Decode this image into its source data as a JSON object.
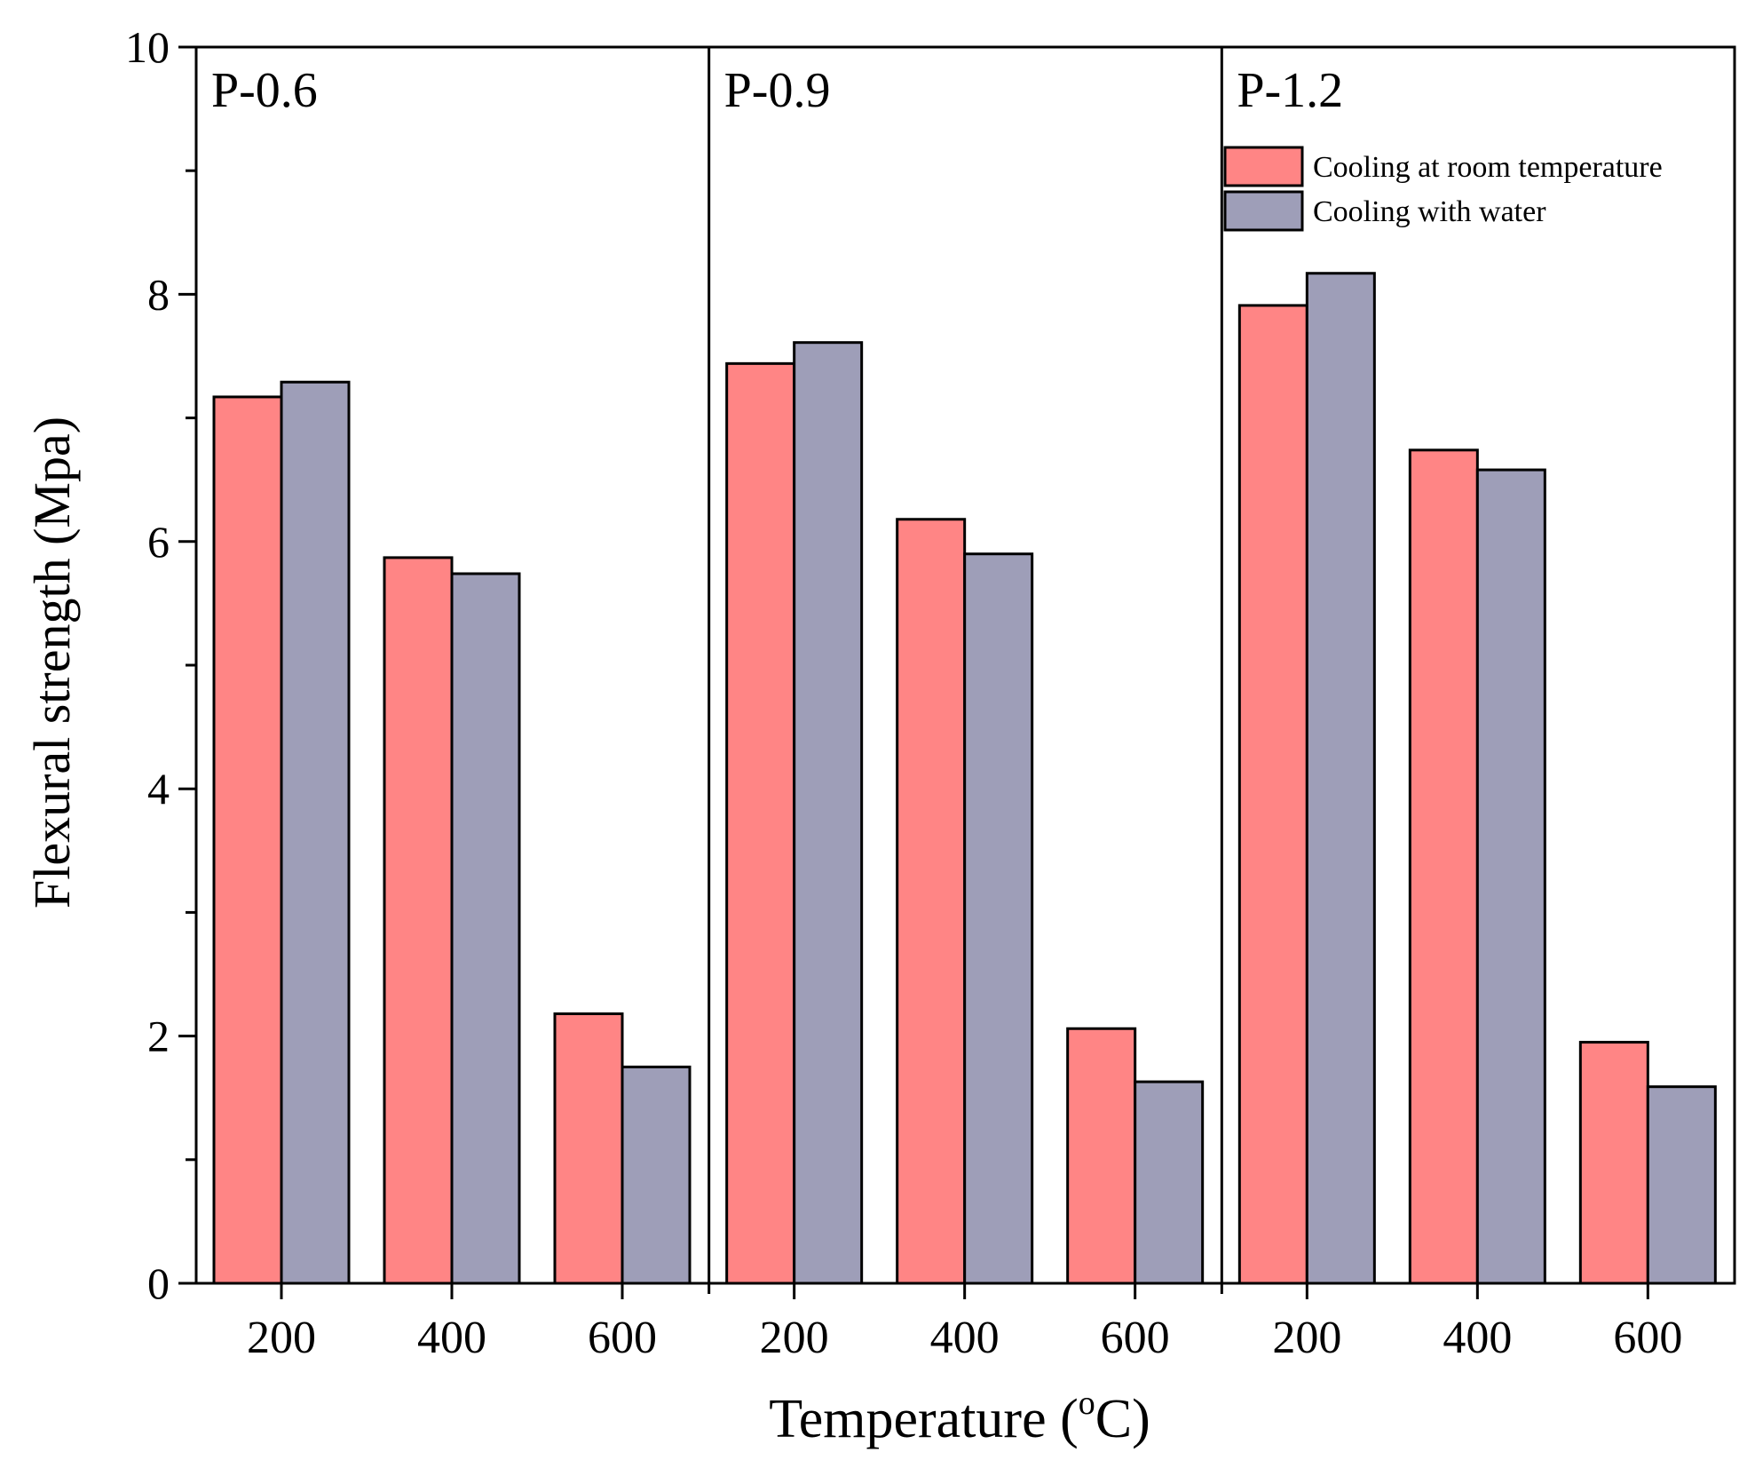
{
  "chart_data": {
    "type": "bar",
    "title": "",
    "xlabel_main": "Temperature (",
    "xlabel_sup": "o",
    "xlabel_tail": "C)",
    "ylabel": "Flexural strength (Mpa)",
    "ylim": [
      0,
      10
    ],
    "yticks": [
      0,
      2,
      4,
      6,
      8,
      10
    ],
    "yticks_minor": [
      1,
      3,
      5,
      7,
      9
    ],
    "grid": false,
    "legend_position": "top-right",
    "groups": [
      {
        "label": "P-0.6",
        "categories": [
          "200",
          "400",
          "600"
        ],
        "series": [
          {
            "name": "Cooling at room temperature",
            "values": [
              7.17,
              5.87,
              2.18
            ]
          },
          {
            "name": "Cooling with water",
            "values": [
              7.29,
              5.74,
              1.75
            ]
          }
        ]
      },
      {
        "label": "P-0.9",
        "categories": [
          "200",
          "400",
          "600"
        ],
        "series": [
          {
            "name": "Cooling at room temperature",
            "values": [
              7.44,
              6.18,
              2.06
            ]
          },
          {
            "name": "Cooling with water",
            "values": [
              7.61,
              5.9,
              1.63
            ]
          }
        ]
      },
      {
        "label": "P-1.2",
        "categories": [
          "200",
          "400",
          "600"
        ],
        "series": [
          {
            "name": "Cooling at room temperature",
            "values": [
              7.91,
              6.74,
              1.95
            ]
          },
          {
            "name": "Cooling with water",
            "values": [
              8.17,
              6.58,
              1.59
            ]
          }
        ]
      }
    ],
    "legend": [
      {
        "name": "Cooling at room temperature",
        "color": "#FF8585"
      },
      {
        "name": "Cooling with water",
        "color": "#9E9EB8"
      }
    ]
  }
}
